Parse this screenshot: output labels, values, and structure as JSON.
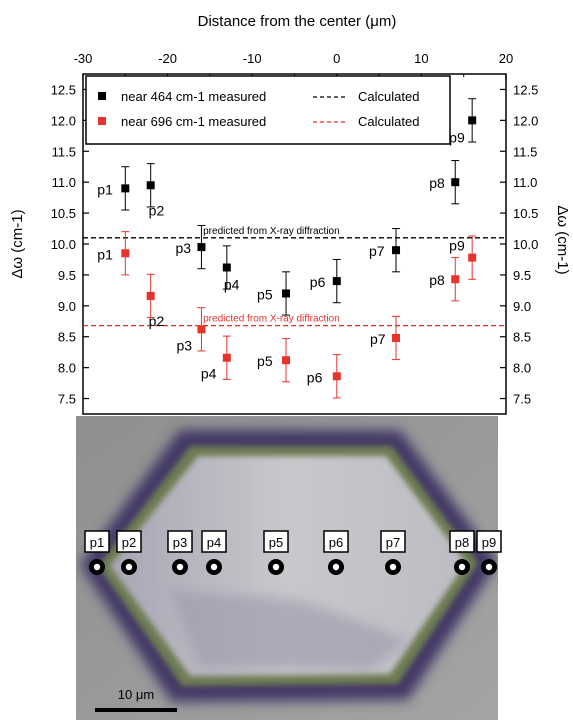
{
  "chart_data": {
    "type": "scatter",
    "top_axis_label": "Distance from the center (μm)",
    "xlim": [
      -30,
      20
    ],
    "x_ticks": [
      "-30",
      "-20",
      "-10",
      "0",
      "10",
      "20"
    ],
    "ylabel_left": "Δω (cm-1)",
    "ylabel_right": "Δω (cm-1)",
    "ylim": [
      7.25,
      12.75
    ],
    "y_ticks": [
      "7.5",
      "8.0",
      "8.5",
      "9.0",
      "9.5",
      "10.0",
      "10.5",
      "11.0",
      "11.5",
      "12.0",
      "12.5"
    ],
    "grid": false,
    "legend_position": "top-left",
    "series": [
      {
        "name": "near 464 cm-1 measured",
        "color": "#000000",
        "x": [
          -25,
          -22,
          -16,
          -13,
          -6,
          0,
          7,
          14,
          16
        ],
        "y": [
          10.9,
          10.95,
          9.95,
          9.62,
          9.2,
          9.4,
          9.9,
          11.0,
          12.0
        ],
        "err": [
          0.35,
          0.35,
          0.35,
          0.35,
          0.35,
          0.35,
          0.35,
          0.35,
          0.35
        ],
        "labels": [
          "p1",
          "p2",
          "p3",
          "p4",
          "p5",
          "p6",
          "p7",
          "p8",
          "p9"
        ]
      },
      {
        "name": "near 696 cm-1 measured",
        "color": "#e8332b",
        "x": [
          -25,
          -22,
          -16,
          -13,
          -6,
          0,
          7,
          14,
          16
        ],
        "y": [
          9.85,
          9.16,
          8.62,
          8.16,
          8.12,
          7.86,
          8.48,
          9.43,
          9.78
        ],
        "err": [
          0.35,
          0.35,
          0.35,
          0.35,
          0.35,
          0.35,
          0.35,
          0.35,
          0.35
        ],
        "labels": [
          "p1",
          "p2",
          "p3",
          "p4",
          "p5",
          "p6",
          "p7",
          "p8",
          "p9"
        ]
      }
    ],
    "calculated_lines": [
      {
        "name": "Calculated",
        "value": 10.1,
        "color": "#000000",
        "annotation": "predicted from X-ray diffraction"
      },
      {
        "name": "Calculated",
        "value": 8.68,
        "color": "#e8332b",
        "annotation": "predicted from X-ray diffraction"
      }
    ]
  },
  "micrograph": {
    "points": [
      "p1",
      "p2",
      "p3",
      "p4",
      "p5",
      "p6",
      "p7",
      "p8",
      "p9"
    ],
    "scale_bar_label": "10 μm",
    "colors": {
      "background": "#9a9a9a",
      "crystal_rim": "#4a3a70",
      "crystal_inner_ring": "#6c7a52",
      "crystal_fill": "#bcbcc0"
    }
  }
}
